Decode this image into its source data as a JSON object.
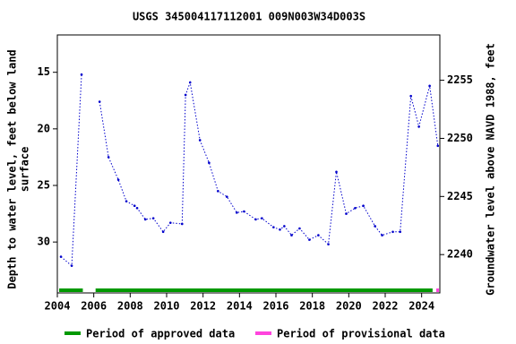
{
  "chart_data": {
    "type": "line",
    "title": "USGS 345004117112001 009N003W34D003S",
    "ylabel_lines": [
      "Depth to water level, feet below land",
      "surface"
    ],
    "y2label": "Groundwater level above NAVD 1988, feet",
    "xlim": [
      2004,
      2025
    ],
    "xticks": [
      2004,
      2006,
      2008,
      2010,
      2012,
      2014,
      2016,
      2018,
      2020,
      2022,
      2024
    ],
    "ylim": [
      11.7,
      34.5
    ],
    "y_inverted": true,
    "yticks": [
      15,
      20,
      25,
      30
    ],
    "y2lim": [
      2236.7,
      2258.9
    ],
    "y2ticks": [
      2240,
      2245,
      2250,
      2255
    ],
    "series": [
      {
        "name": "Depth to water level",
        "color": "#0000cc",
        "x": [
          2004.2,
          2004.79,
          2005.33,
          null,
          2006.32,
          2006.81,
          2007.35,
          2007.79,
          2008.24,
          2008.38,
          2008.83,
          2009.27,
          2009.81,
          2010.21,
          2010.85,
          2011.04,
          2011.29,
          2011.83,
          2012.33,
          2012.82,
          2013.31,
          2013.85,
          2014.25,
          2014.89,
          2015.23,
          2015.87,
          2016.22,
          2016.46,
          2016.86,
          2017.3,
          2017.84,
          2018.33,
          2018.88,
          2019.32,
          2019.86,
          2020.35,
          2020.8,
          2021.44,
          2021.83,
          2022.42,
          2022.82,
          2023.41,
          2023.85,
          2024.44,
          2024.89
        ],
        "values": [
          31.3,
          32.1,
          15.2,
          null,
          17.6,
          22.5,
          24.5,
          26.4,
          26.8,
          27.0,
          28.0,
          27.9,
          29.1,
          28.3,
          28.4,
          17.0,
          15.9,
          21.0,
          23.0,
          25.5,
          26.0,
          27.4,
          27.3,
          28.0,
          27.9,
          28.7,
          28.9,
          28.6,
          29.4,
          28.8,
          29.8,
          29.4,
          30.2,
          23.8,
          27.5,
          27.0,
          26.8,
          28.6,
          29.4,
          29.1,
          29.1,
          17.1,
          19.8,
          16.2,
          21.5
        ]
      }
    ],
    "periods": [
      {
        "name": "Period of approved data",
        "color": "#009900",
        "ranges": [
          [
            2004.1,
            2005.4
          ],
          [
            2006.1,
            2024.6
          ]
        ]
      },
      {
        "name": "Period of provisional data",
        "color": "#ff44dd",
        "ranges": [
          [
            2024.8,
            2024.95
          ]
        ]
      }
    ]
  }
}
